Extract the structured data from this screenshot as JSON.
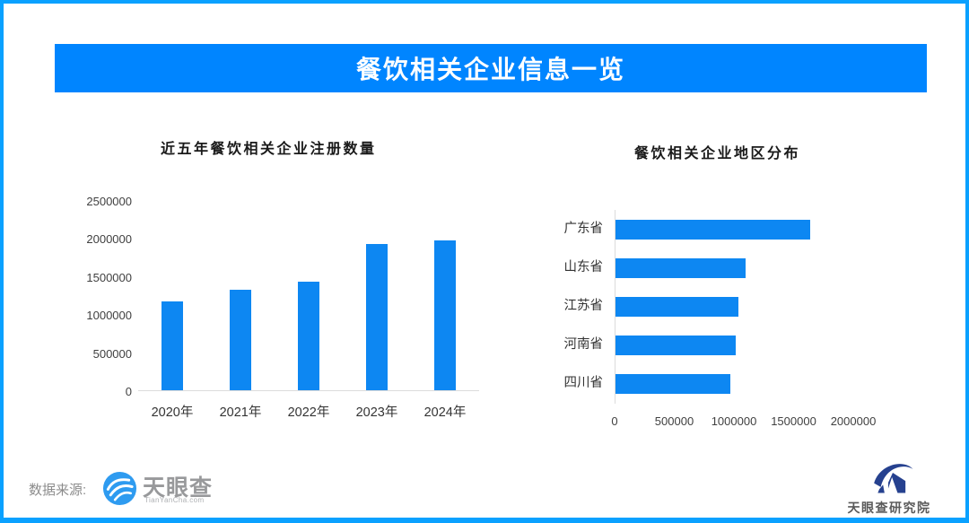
{
  "header": {
    "title": "餐饮相关企业信息一览",
    "bg_color": "#0085FF"
  },
  "colors": {
    "frame_border": "#0AA1FF",
    "bar": "#0D87F2",
    "axis_line": "#DCDCDC"
  },
  "footer": {
    "source_label": "数据来源:",
    "tianyancha_name": "天眼查",
    "tianyancha_sub": "TianYanCha.com",
    "research_name": "天眼查研究院"
  },
  "chart_data": [
    {
      "type": "bar",
      "orientation": "vertical",
      "title": "近五年餐饮相关企业注册数量",
      "categories": [
        "2020年",
        "2021年",
        "2022年",
        "2023年",
        "2024年"
      ],
      "values": [
        1170000,
        1320000,
        1430000,
        1920000,
        1970000
      ],
      "ylabel": "",
      "xlabel": "",
      "ylim": [
        0,
        2500000
      ],
      "y_ticks": [
        0,
        500000,
        1000000,
        1500000,
        2000000,
        2500000
      ],
      "grid": false,
      "bar_color": "#0D87F2"
    },
    {
      "type": "bar",
      "orientation": "horizontal",
      "title": "餐饮相关企业地区分布",
      "categories": [
        "广东省",
        "山东省",
        "江苏省",
        "河南省",
        "四川省"
      ],
      "values": [
        1630000,
        1090000,
        1030000,
        1010000,
        960000
      ],
      "ylabel": "",
      "xlabel": "",
      "xlim": [
        0,
        2000000
      ],
      "x_ticks": [
        0,
        500000,
        1000000,
        1500000,
        2000000
      ],
      "grid": false,
      "bar_color": "#0D87F2"
    }
  ]
}
